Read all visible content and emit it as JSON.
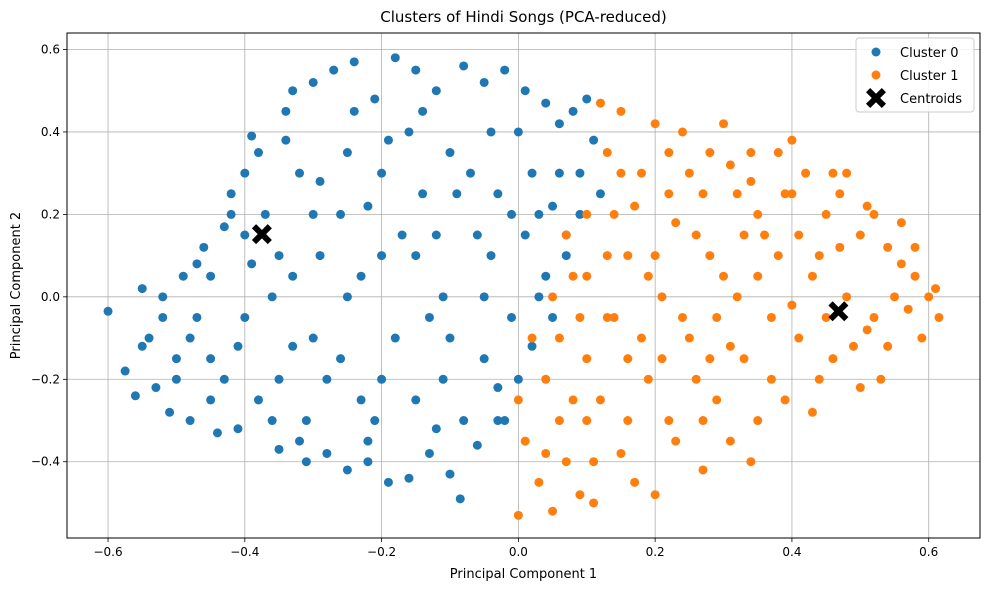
{
  "chart_data": {
    "type": "scatter",
    "title": "Clusters of Hindi Songs (PCA-reduced)",
    "xlabel": "Principal Component 1",
    "ylabel": "Principal Component 2",
    "xlim": [
      -0.66,
      0.675
    ],
    "ylim": [
      -0.585,
      0.64
    ],
    "xticks": [
      -0.6,
      -0.4,
      -0.2,
      0.0,
      0.2,
      0.4,
      0.6
    ],
    "xtick_labels": [
      "−0.6",
      "−0.4",
      "−0.2",
      "0.0",
      "0.2",
      "0.4",
      "0.6"
    ],
    "yticks": [
      -0.4,
      -0.2,
      0.0,
      0.2,
      0.4,
      0.6
    ],
    "ytick_labels": [
      "−0.4",
      "−0.2",
      "0.0",
      "0.2",
      "0.4",
      "0.6"
    ],
    "grid": true,
    "legend_position": "top-right",
    "series": [
      {
        "name": "Cluster 0",
        "color": "#1f77b4",
        "marker": "circle",
        "points": [
          [
            -0.6,
            -0.035
          ],
          [
            -0.575,
            -0.18
          ],
          [
            -0.56,
            -0.24
          ],
          [
            -0.55,
            0.02
          ],
          [
            -0.54,
            -0.1
          ],
          [
            -0.53,
            -0.22
          ],
          [
            -0.52,
            0.0
          ],
          [
            -0.51,
            -0.28
          ],
          [
            -0.5,
            -0.15
          ],
          [
            -0.49,
            0.05
          ],
          [
            -0.48,
            -0.3
          ],
          [
            -0.47,
            -0.05
          ],
          [
            -0.46,
            0.12
          ],
          [
            -0.45,
            -0.25
          ],
          [
            -0.44,
            -0.33
          ],
          [
            -0.43,
            0.17
          ],
          [
            -0.42,
            0.2
          ],
          [
            -0.41,
            -0.32
          ],
          [
            -0.4,
            0.3
          ],
          [
            -0.39,
            0.39
          ],
          [
            -0.38,
            0.35
          ],
          [
            -0.37,
            0.2
          ],
          [
            -0.36,
            -0.3
          ],
          [
            -0.35,
            -0.37
          ],
          [
            -0.34,
            0.45
          ],
          [
            -0.33,
            0.5
          ],
          [
            -0.32,
            0.3
          ],
          [
            -0.31,
            -0.4
          ],
          [
            -0.3,
            0.52
          ],
          [
            -0.29,
            0.1
          ],
          [
            -0.28,
            -0.38
          ],
          [
            -0.27,
            0.55
          ],
          [
            -0.26,
            0.2
          ],
          [
            -0.25,
            -0.42
          ],
          [
            -0.24,
            0.57
          ],
          [
            -0.23,
            0.05
          ],
          [
            -0.22,
            -0.4
          ],
          [
            -0.21,
            0.48
          ],
          [
            -0.2,
            0.3
          ],
          [
            -0.19,
            -0.45
          ],
          [
            -0.18,
            0.58
          ],
          [
            -0.17,
            0.15
          ],
          [
            -0.16,
            -0.44
          ],
          [
            -0.15,
            0.55
          ],
          [
            -0.14,
            0.25
          ],
          [
            -0.13,
            -0.38
          ],
          [
            -0.12,
            0.5
          ],
          [
            -0.11,
            0.0
          ],
          [
            -0.1,
            -0.43
          ],
          [
            -0.085,
            -0.49
          ],
          [
            -0.08,
            0.56
          ],
          [
            -0.07,
            0.3
          ],
          [
            -0.06,
            -0.36
          ],
          [
            -0.05,
            0.52
          ],
          [
            -0.04,
            0.1
          ],
          [
            -0.03,
            -0.3
          ],
          [
            -0.02,
            0.55
          ],
          [
            -0.01,
            0.2
          ],
          [
            0.0,
            -0.2
          ],
          [
            0.01,
            0.5
          ],
          [
            0.02,
            0.3
          ],
          [
            0.03,
            0.0
          ],
          [
            0.04,
            0.47
          ],
          [
            0.05,
            0.22
          ],
          [
            0.06,
            0.42
          ],
          [
            0.07,
            0.15
          ],
          [
            0.08,
            0.45
          ],
          [
            0.09,
            0.3
          ],
          [
            0.1,
            0.48
          ],
          [
            0.11,
            0.38
          ],
          [
            0.12,
            0.25
          ],
          [
            -0.35,
            0.1
          ],
          [
            -0.3,
            -0.1
          ],
          [
            -0.25,
            0.0
          ],
          [
            -0.2,
            -0.2
          ],
          [
            -0.15,
            0.1
          ],
          [
            -0.1,
            -0.1
          ],
          [
            -0.05,
            0.0
          ],
          [
            -0.45,
            -0.15
          ],
          [
            -0.4,
            -0.05
          ],
          [
            -0.35,
            -0.2
          ],
          [
            -0.3,
            0.2
          ],
          [
            -0.25,
            0.35
          ],
          [
            -0.2,
            0.1
          ],
          [
            -0.15,
            -0.25
          ],
          [
            -0.1,
            0.35
          ],
          [
            -0.05,
            -0.15
          ],
          [
            0.0,
            0.4
          ],
          [
            0.05,
            -0.05
          ],
          [
            -0.5,
            -0.2
          ],
          [
            -0.45,
            0.05
          ],
          [
            -0.4,
            0.15
          ],
          [
            -0.38,
            -0.25
          ],
          [
            -0.33,
            0.05
          ],
          [
            -0.28,
            -0.2
          ],
          [
            -0.22,
            0.22
          ],
          [
            -0.18,
            -0.1
          ],
          [
            -0.12,
            0.15
          ],
          [
            -0.08,
            -0.3
          ],
          [
            -0.03,
            0.25
          ],
          [
            0.02,
            -0.12
          ],
          [
            0.07,
            0.1
          ],
          [
            -0.55,
            -0.12
          ],
          [
            -0.52,
            -0.05
          ],
          [
            -0.48,
            -0.1
          ],
          [
            -0.43,
            -0.2
          ],
          [
            -0.36,
            0.0
          ],
          [
            -0.31,
            -0.3
          ],
          [
            -0.26,
            -0.15
          ],
          [
            -0.21,
            -0.3
          ],
          [
            -0.16,
            0.4
          ],
          [
            -0.11,
            -0.2
          ],
          [
            -0.06,
            0.15
          ],
          [
            -0.01,
            -0.05
          ],
          [
            0.04,
            0.05
          ],
          [
            0.09,
            0.2
          ],
          [
            -0.42,
            0.25
          ],
          [
            -0.34,
            0.38
          ],
          [
            -0.24,
            0.45
          ],
          [
            -0.14,
            0.45
          ],
          [
            -0.04,
            0.4
          ],
          [
            0.06,
            0.3
          ],
          [
            -0.32,
            -0.35
          ],
          [
            -0.22,
            -0.35
          ],
          [
            -0.12,
            -0.32
          ],
          [
            -0.02,
            -0.3
          ],
          [
            -0.47,
            0.08
          ],
          [
            -0.39,
            0.08
          ],
          [
            -0.29,
            0.28
          ],
          [
            -0.19,
            0.38
          ],
          [
            -0.09,
            0.25
          ],
          [
            0.01,
            0.15
          ],
          [
            -0.41,
            -0.12
          ],
          [
            -0.33,
            -0.12
          ],
          [
            -0.23,
            -0.25
          ],
          [
            -0.13,
            -0.05
          ],
          [
            -0.03,
            -0.22
          ],
          [
            0.03,
            0.2
          ]
        ]
      },
      {
        "name": "Cluster 1",
        "color": "#ff7f0e",
        "marker": "circle",
        "points": [
          [
            0.0,
            -0.25
          ],
          [
            0.0,
            -0.53
          ],
          [
            0.01,
            -0.35
          ],
          [
            0.02,
            -0.1
          ],
          [
            0.03,
            -0.45
          ],
          [
            0.04,
            -0.2
          ],
          [
            0.05,
            -0.52
          ],
          [
            0.05,
            0.0
          ],
          [
            0.06,
            -0.3
          ],
          [
            0.07,
            -0.4
          ],
          [
            0.08,
            0.05
          ],
          [
            0.09,
            -0.48
          ],
          [
            0.1,
            -0.15
          ],
          [
            0.1,
            0.2
          ],
          [
            0.11,
            -0.5
          ],
          [
            0.12,
            -0.25
          ],
          [
            0.13,
            0.35
          ],
          [
            0.14,
            -0.05
          ],
          [
            0.15,
            0.45
          ],
          [
            0.15,
            -0.38
          ],
          [
            0.16,
            0.1
          ],
          [
            0.17,
            -0.45
          ],
          [
            0.18,
            0.3
          ],
          [
            0.19,
            -0.2
          ],
          [
            0.2,
            0.42
          ],
          [
            0.2,
            -0.48
          ],
          [
            0.21,
            0.0
          ],
          [
            0.22,
            0.25
          ],
          [
            0.23,
            -0.35
          ],
          [
            0.24,
            0.4
          ],
          [
            0.25,
            -0.1
          ],
          [
            0.26,
            0.15
          ],
          [
            0.27,
            -0.42
          ],
          [
            0.28,
            0.35
          ],
          [
            0.29,
            -0.25
          ],
          [
            0.3,
            0.42
          ],
          [
            0.3,
            0.05
          ],
          [
            0.31,
            -0.35
          ],
          [
            0.32,
            0.25
          ],
          [
            0.33,
            -0.15
          ],
          [
            0.34,
            0.35
          ],
          [
            0.35,
            -0.3
          ],
          [
            0.36,
            0.15
          ],
          [
            0.37,
            -0.05
          ],
          [
            0.38,
            0.35
          ],
          [
            0.39,
            -0.25
          ],
          [
            0.4,
            0.25
          ],
          [
            0.41,
            -0.1
          ],
          [
            0.42,
            0.3
          ],
          [
            0.43,
            0.05
          ],
          [
            0.44,
            -0.2
          ],
          [
            0.45,
            0.2
          ],
          [
            0.46,
            -0.15
          ],
          [
            0.47,
            0.25
          ],
          [
            0.48,
            0.0
          ],
          [
            0.49,
            -0.12
          ],
          [
            0.5,
            0.15
          ],
          [
            0.51,
            -0.08
          ],
          [
            0.52,
            0.2
          ],
          [
            0.53,
            -0.2
          ],
          [
            0.54,
            0.12
          ],
          [
            0.55,
            0.0
          ],
          [
            0.56,
            0.08
          ],
          [
            0.57,
            -0.03
          ],
          [
            0.58,
            0.05
          ],
          [
            0.59,
            -0.1
          ],
          [
            0.6,
            0.0
          ],
          [
            0.61,
            0.02
          ],
          [
            0.615,
            -0.05
          ],
          [
            0.12,
            0.47
          ],
          [
            0.13,
            -0.05
          ],
          [
            0.18,
            -0.1
          ],
          [
            0.22,
            -0.3
          ],
          [
            0.26,
            -0.2
          ],
          [
            0.28,
            0.1
          ],
          [
            0.32,
            0.0
          ],
          [
            0.34,
            -0.4
          ],
          [
            0.38,
            0.1
          ],
          [
            0.06,
            -0.1
          ],
          [
            0.08,
            -0.25
          ],
          [
            0.1,
            0.05
          ],
          [
            0.14,
            0.2
          ],
          [
            0.16,
            -0.3
          ],
          [
            0.2,
            0.1
          ],
          [
            0.24,
            -0.05
          ],
          [
            0.27,
            0.25
          ],
          [
            0.31,
            -0.12
          ],
          [
            0.35,
            0.2
          ],
          [
            0.4,
            -0.02
          ],
          [
            0.44,
            0.1
          ],
          [
            0.48,
            0.3
          ],
          [
            0.52,
            -0.05
          ],
          [
            0.56,
            0.18
          ],
          [
            0.07,
            0.15
          ],
          [
            0.11,
            -0.4
          ],
          [
            0.15,
            0.3
          ],
          [
            0.19,
            0.05
          ],
          [
            0.23,
            0.18
          ],
          [
            0.27,
            -0.3
          ],
          [
            0.31,
            0.32
          ],
          [
            0.35,
            0.05
          ],
          [
            0.39,
            0.25
          ],
          [
            0.43,
            -0.28
          ],
          [
            0.47,
            0.12
          ],
          [
            0.51,
            0.22
          ],
          [
            0.09,
            -0.05
          ],
          [
            0.13,
            0.1
          ],
          [
            0.17,
            0.22
          ],
          [
            0.21,
            -0.15
          ],
          [
            0.25,
            0.3
          ],
          [
            0.29,
            -0.05
          ],
          [
            0.33,
            0.15
          ],
          [
            0.37,
            -0.2
          ],
          [
            0.41,
            0.15
          ],
          [
            0.45,
            -0.05
          ],
          [
            0.5,
            -0.22
          ],
          [
            0.54,
            -0.12
          ],
          [
            0.58,
            0.12
          ],
          [
            0.04,
            -0.38
          ],
          [
            0.1,
            -0.3
          ],
          [
            0.16,
            -0.15
          ],
          [
            0.22,
            0.35
          ],
          [
            0.28,
            -0.15
          ],
          [
            0.34,
            0.28
          ],
          [
            0.4,
            0.38
          ],
          [
            0.46,
            0.3
          ]
        ]
      },
      {
        "name": "Centroids",
        "color": "#000000",
        "marker": "X",
        "points": [
          [
            -0.375,
            0.152
          ],
          [
            0.468,
            -0.035
          ]
        ]
      }
    ]
  }
}
